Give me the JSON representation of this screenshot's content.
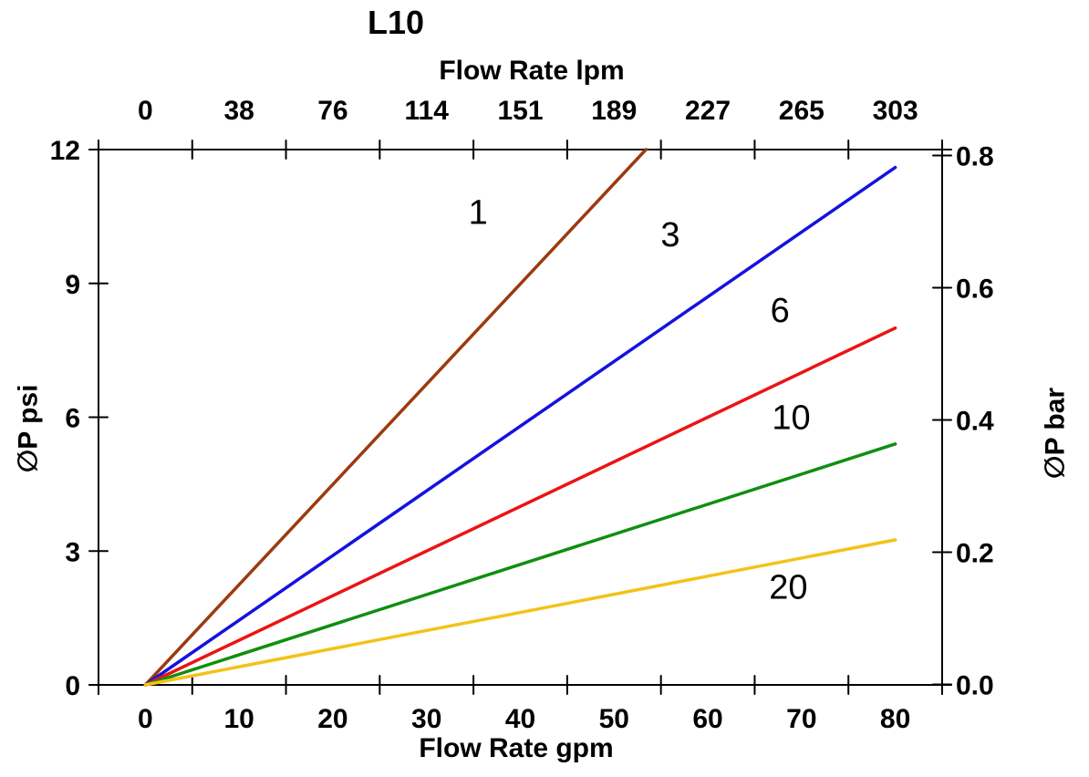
{
  "page": {
    "background_color": "#ffffff",
    "text_color": "#000000"
  },
  "chart_data": {
    "type": "line",
    "title": "L10",
    "grid": false,
    "legend": "none - series labeled inline with numbers",
    "axes": {
      "top_x": {
        "label": "Flow Rate lpm",
        "tick_labels": [
          "0",
          "38",
          "76",
          "114",
          "151",
          "189",
          "227",
          "265",
          "303"
        ]
      },
      "bottom_x": {
        "label": "Flow Rate gpm",
        "tick_labels": [
          "0",
          "10",
          "20",
          "30",
          "40",
          "50",
          "60",
          "70",
          "80"
        ],
        "range_gpm": [
          0,
          80
        ]
      },
      "left_y": {
        "label": "∅P psi",
        "tick_labels": [
          "12",
          "9",
          "6",
          "3",
          "0"
        ],
        "range_psi": [
          0,
          12
        ]
      },
      "right_y": {
        "label": "∅P bar",
        "tick_labels": [
          "0.8",
          "0.6",
          "0.4",
          "0.2",
          "0.0"
        ],
        "range_bar": [
          0,
          0.8
        ]
      }
    },
    "series": [
      {
        "name": "1",
        "color": "#9C3A0F",
        "points_gpm_psi": [
          [
            0,
            0
          ],
          [
            53.4,
            12
          ]
        ],
        "note": "clipped at top of plot (12 psi) near 53 gpm",
        "label_pos_gpm_psi": [
          35.5,
          10.6
        ]
      },
      {
        "name": "3",
        "color": "#1313DF",
        "points_gpm_psi": [
          [
            0,
            0
          ],
          [
            80,
            11.6
          ]
        ],
        "label_pos_gpm_psi": [
          56.0,
          10.1
        ]
      },
      {
        "name": "6",
        "color": "#EC1313",
        "points_gpm_psi": [
          [
            0,
            0
          ],
          [
            80,
            8.0
          ]
        ],
        "label_pos_gpm_psi": [
          67.7,
          8.4
        ]
      },
      {
        "name": "10",
        "color": "#0F8F0F",
        "points_gpm_psi": [
          [
            0,
            0
          ],
          [
            80,
            5.4
          ]
        ],
        "label_pos_gpm_psi": [
          68.9,
          6.0
        ]
      },
      {
        "name": "20",
        "color": "#F2C318",
        "points_gpm_psi": [
          [
            0,
            0
          ],
          [
            80,
            3.25
          ]
        ],
        "label_pos_gpm_psi": [
          68.6,
          2.2
        ]
      }
    ]
  }
}
